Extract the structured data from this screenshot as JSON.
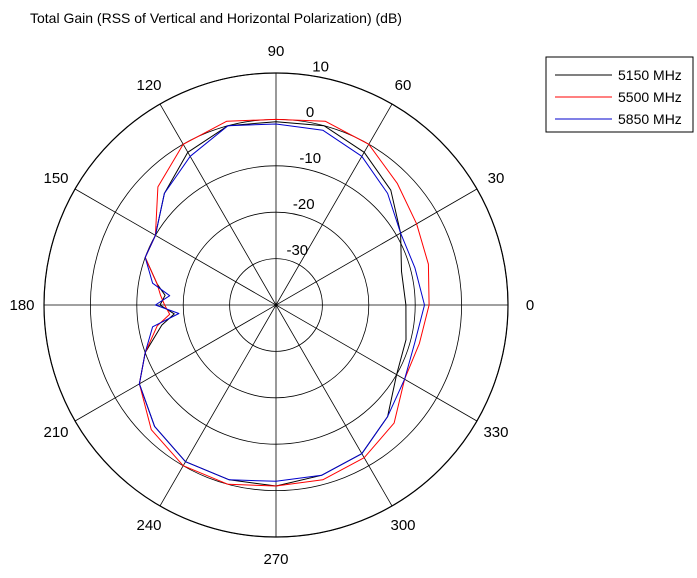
{
  "chart_data": {
    "type": "polar-line",
    "title": "Total Gain (RSS of Vertical and Horizontal Polarization) (dB)",
    "rlim": [
      -40,
      10
    ],
    "radial_ticks": [
      -30,
      -20,
      -10,
      0,
      10
    ],
    "radial_tick_labels": [
      "-30",
      "-20",
      "-10",
      "0",
      "10"
    ],
    "angle_ticks": [
      0,
      30,
      60,
      90,
      120,
      150,
      180,
      210,
      240,
      270,
      300,
      330
    ],
    "angle_tick_labels": [
      "0",
      "30",
      "60",
      "90",
      "120",
      "150",
      "180",
      "210",
      "240",
      "270",
      "300",
      "330"
    ],
    "grid": true,
    "legend_position": "top-right",
    "angles_deg": [
      0,
      15,
      30,
      45,
      60,
      75,
      90,
      105,
      120,
      135,
      150,
      160,
      170,
      175,
      180,
      185,
      190,
      200,
      210,
      225,
      240,
      255,
      270,
      285,
      300,
      315,
      330,
      345
    ],
    "series": [
      {
        "name": "5150 MHz",
        "color": "#000000",
        "values": [
          -12,
          -12,
          -9,
          -5,
          -2,
          0,
          -0.5,
          0,
          -2,
          -6,
          -10,
          -10,
          -14,
          -16,
          -15,
          -18,
          -15,
          -10,
          -6,
          -3,
          -1,
          -1,
          -1,
          -2,
          -3,
          -6,
          -10,
          -11
        ]
      },
      {
        "name": "5500 MHz",
        "color": "#ff0000",
        "values": [
          -7,
          -6,
          -5,
          -3,
          0,
          1,
          0,
          1,
          0,
          -4,
          -10,
          -10,
          -14,
          -15,
          -16,
          -17,
          -14,
          -10,
          -6,
          -2,
          0,
          0,
          -1,
          -1,
          -2,
          -4,
          -8,
          -8
        ]
      },
      {
        "name": "5850 MHz",
        "color": "#0000cc",
        "values": [
          -8,
          -9,
          -9,
          -6,
          -3,
          -1,
          -1,
          0,
          -3,
          -6,
          -10,
          -10,
          -13,
          -17,
          -14,
          -19,
          -13,
          -10,
          -6,
          -3,
          -1,
          -1,
          -2,
          -2,
          -3,
          -6,
          -8,
          -9
        ]
      }
    ]
  }
}
